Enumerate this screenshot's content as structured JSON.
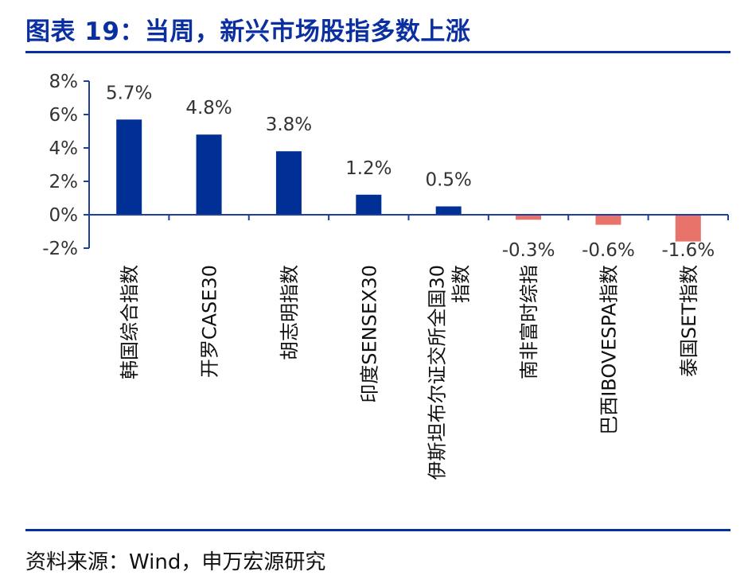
{
  "title": "图表 19：当周，新兴市场股指多数上涨",
  "source": "资料来源：Wind，申万宏源研究",
  "colors": {
    "positive": "#002f96",
    "negative": "#e8736b",
    "accent": "#0a2fa0",
    "axis": "#1f3f9f"
  },
  "chart_data": {
    "type": "bar",
    "categories": [
      [
        "韩国综合指数"
      ],
      [
        "开罗CASE30"
      ],
      [
        "胡志明指数"
      ],
      [
        "印度SENSEX30"
      ],
      [
        "伊斯坦布尔证交所全国30",
        "指数"
      ],
      [
        "南非富时综指"
      ],
      [
        "巴西IBOVESPA指数"
      ],
      [
        "泰国SET指数"
      ]
    ],
    "values": [
      5.7,
      4.8,
      3.8,
      1.2,
      0.5,
      -0.3,
      -0.6,
      -1.6
    ],
    "data_labels": [
      "5.7%",
      "4.8%",
      "3.8%",
      "1.2%",
      "0.5%",
      "-0.3%",
      "-0.6%",
      "-1.6%"
    ],
    "ylim": [
      -2,
      8
    ],
    "yticks": [
      -2,
      0,
      2,
      4,
      6,
      8
    ],
    "ytick_labels": [
      "-2%",
      "0%",
      "2%",
      "4%",
      "6%",
      "8%"
    ],
    "grid": false,
    "legend": "none"
  }
}
